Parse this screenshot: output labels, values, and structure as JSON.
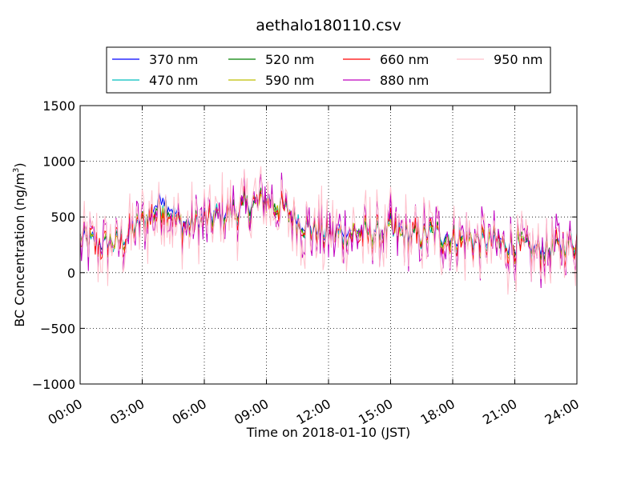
{
  "chart_data": {
    "type": "line",
    "title": "aethalo180110.csv",
    "xlabel": "Time on 2018-01-10 (JST)",
    "ylabel_main": "BC Concentration (ng/m",
    "ylabel_sup": "3",
    "ylabel_close": ")",
    "xlim": [
      0,
      24
    ],
    "ylim": [
      -1000,
      1500
    ],
    "x_ticks": [
      0,
      3,
      6,
      9,
      12,
      15,
      18,
      21,
      24
    ],
    "x_tick_labels": [
      "00:00",
      "03:00",
      "06:00",
      "09:00",
      "12:00",
      "15:00",
      "18:00",
      "21:00",
      "24:00"
    ],
    "y_ticks": [
      -1000,
      -500,
      0,
      500,
      1000,
      1500
    ],
    "y_tick_labels": [
      "−1000",
      "−500",
      "0",
      "500",
      "1000",
      "1500"
    ],
    "grid": true,
    "legend_placement": "top-center",
    "hours": [
      0,
      1,
      2,
      3,
      4,
      5,
      6,
      7,
      8,
      9,
      10,
      11,
      12,
      13,
      14,
      15,
      16,
      17,
      18,
      19,
      20,
      21,
      22,
      23,
      24
    ],
    "series": [
      {
        "name": "370 nm",
        "color": "#0000ff",
        "values": [
          320,
          260,
          300,
          470,
          690,
          430,
          480,
          540,
          590,
          680,
          560,
          420,
          350,
          380,
          360,
          390,
          330,
          360,
          320,
          300,
          280,
          260,
          210,
          230,
          300
        ]
      },
      {
        "name": "470 nm",
        "color": "#00bfbf",
        "values": [
          310,
          250,
          295,
          450,
          640,
          420,
          470,
          530,
          585,
          670,
          555,
          410,
          340,
          370,
          355,
          380,
          320,
          350,
          310,
          295,
          270,
          250,
          205,
          225,
          290
        ]
      },
      {
        "name": "520 nm",
        "color": "#008000",
        "values": [
          305,
          245,
          290,
          445,
          620,
          415,
          465,
          525,
          580,
          665,
          550,
          405,
          335,
          365,
          350,
          375,
          315,
          345,
          305,
          290,
          265,
          245,
          200,
          220,
          285
        ]
      },
      {
        "name": "590 nm",
        "color": "#bfbf00",
        "values": [
          300,
          240,
          285,
          440,
          600,
          410,
          460,
          520,
          575,
          660,
          545,
          400,
          330,
          360,
          345,
          370,
          310,
          340,
          300,
          285,
          260,
          240,
          195,
          215,
          280
        ]
      },
      {
        "name": "660 nm",
        "color": "#ff0000",
        "values": [
          300,
          235,
          280,
          435,
          580,
          405,
          455,
          515,
          570,
          655,
          540,
          395,
          325,
          355,
          340,
          365,
          305,
          335,
          295,
          280,
          255,
          235,
          190,
          210,
          275
        ]
      },
      {
        "name": "880 nm",
        "color": "#bf00bf",
        "values": [
          290,
          230,
          275,
          430,
          560,
          400,
          450,
          510,
          565,
          650,
          535,
          390,
          320,
          350,
          335,
          360,
          300,
          330,
          290,
          275,
          250,
          230,
          185,
          205,
          270
        ]
      },
      {
        "name": "950 nm",
        "color": "#ffc0cb",
        "values": [
          285,
          225,
          270,
          425,
          550,
          395,
          445,
          505,
          560,
          645,
          530,
          385,
          315,
          345,
          330,
          355,
          295,
          325,
          285,
          270,
          245,
          225,
          180,
          200,
          265
        ]
      }
    ]
  }
}
